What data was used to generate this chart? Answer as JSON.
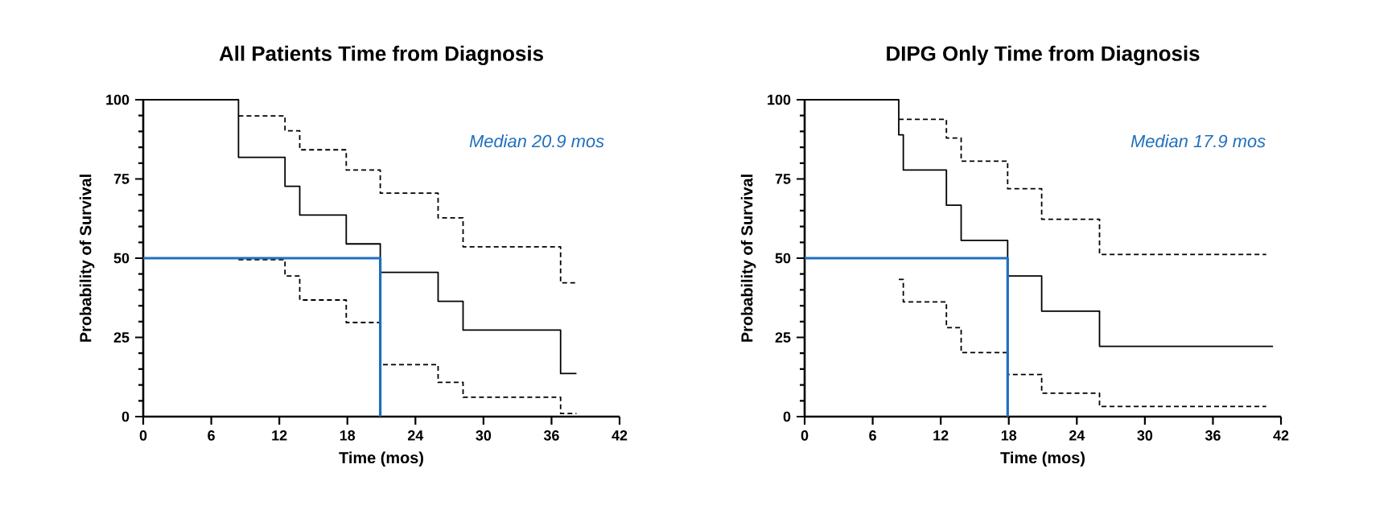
{
  "chart_data": [
    {
      "type": "step",
      "title": "All Patients Time from Diagnosis",
      "xlabel": "Time (mos)",
      "ylabel": "Probability of Survival",
      "xlim": [
        0,
        42
      ],
      "ylim": [
        0,
        100
      ],
      "xticks": [
        0,
        6,
        12,
        18,
        24,
        30,
        36,
        42
      ],
      "yticks": [
        0,
        25,
        50,
        75,
        100
      ],
      "grid": false,
      "annotations": [
        "Median 20.9 mos"
      ],
      "series": [
        {
          "color": "#000000",
          "line_style": "solid",
          "x": [
            0,
            8.4,
            12.5,
            13.8,
            17.9,
            20.9,
            26.0,
            28.2,
            36.8,
            38.2
          ],
          "values": [
            100,
            81.8,
            72.7,
            63.6,
            54.5,
            45.5,
            36.4,
            27.3,
            13.6,
            13.6
          ]
        },
        {
          "color": "#000000",
          "line_style": "dashed",
          "x": [
            8.4,
            12.5,
            13.8,
            17.9,
            20.9,
            26.0,
            28.2,
            36.8,
            38.2
          ],
          "values": [
            94.9,
            90.2,
            84.2,
            77.8,
            70.5,
            62.7,
            53.6,
            42.2,
            42.2
          ]
        },
        {
          "color": "#000000",
          "line_style": "dashed",
          "x": [
            8.4,
            12.5,
            13.8,
            17.9,
            20.9,
            26.0,
            28.2,
            36.8,
            38.2
          ],
          "values": [
            49.5,
            44.4,
            36.8,
            29.7,
            16.4,
            10.8,
            6.1,
            1.0,
            1.0
          ]
        },
        {
          "type": "line",
          "color": "#1f6fbf",
          "line_style": "solid",
          "x": [
            0,
            20.9,
            20.9
          ],
          "values": [
            50,
            50,
            0
          ]
        }
      ]
    },
    {
      "type": "step",
      "title": "DIPG Only Time from Diagnosis",
      "xlabel": "Time (mos)",
      "ylabel": "Probability of Survival",
      "xlim": [
        0,
        42
      ],
      "ylim": [
        0,
        100
      ],
      "xticks": [
        0,
        6,
        12,
        18,
        24,
        30,
        36,
        42
      ],
      "yticks": [
        0,
        25,
        50,
        75,
        100
      ],
      "grid": false,
      "annotations": [
        "Median 17.9 mos"
      ],
      "series": [
        {
          "color": "#000000",
          "line_style": "solid",
          "x": [
            0,
            8.3,
            8.7,
            12.5,
            13.8,
            17.9,
            20.9,
            26.0,
            41.3
          ],
          "values": [
            100,
            88.9,
            77.8,
            66.7,
            55.6,
            44.4,
            33.3,
            22.2,
            22.2
          ]
        },
        {
          "color": "#000000",
          "line_style": "dashed",
          "x": [
            8.3,
            12.5,
            13.8,
            17.9,
            20.9,
            26.0,
            40.7
          ],
          "values": [
            93.8,
            87.9,
            80.6,
            71.9,
            62.3,
            51.2,
            51.2
          ]
        },
        {
          "color": "#000000",
          "line_style": "dashed",
          "x": [
            8.3,
            8.7,
            12.5,
            13.8,
            17.9,
            20.9,
            26.0,
            40.7
          ],
          "values": [
            43.3,
            36.2,
            28.1,
            20.2,
            13.3,
            7.4,
            3.2,
            3.2
          ]
        },
        {
          "type": "line",
          "color": "#1f6fbf",
          "line_style": "solid",
          "x": [
            0,
            17.9,
            17.9
          ],
          "values": [
            50,
            50,
            0
          ]
        }
      ]
    }
  ]
}
